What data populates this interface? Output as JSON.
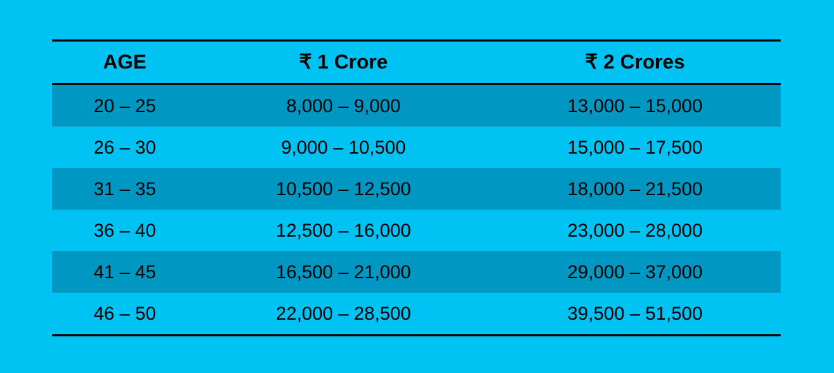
{
  "page": {
    "background_color": "#00c2f3"
  },
  "chart_data": {
    "type": "table",
    "columns": [
      "AGE",
      "₹ 1 Crore",
      "₹ 2 Crores"
    ],
    "rows": [
      [
        "20 – 25",
        "8,000 – 9,000",
        "13,000 – 15,000"
      ],
      [
        "26 – 30",
        "9,000 – 10,500",
        "15,000 – 17,500"
      ],
      [
        "31 – 35",
        "10,500 – 12,500",
        "18,000 – 21,500"
      ],
      [
        "36 – 40",
        "12,500 – 16,000",
        "23,000 – 28,000"
      ],
      [
        "41 – 45",
        "16,500 – 21,000",
        "29,000 – 37,000"
      ],
      [
        "46 – 50",
        "22,000 – 28,500",
        "39,500 – 51,500"
      ]
    ],
    "layout": {
      "shaded_row_indices": [
        0,
        2,
        4
      ],
      "colors": {
        "background": "#00c2f3",
        "shaded_row": "#0097c2",
        "rule_line": "#000000",
        "text": "#000000"
      }
    }
  }
}
